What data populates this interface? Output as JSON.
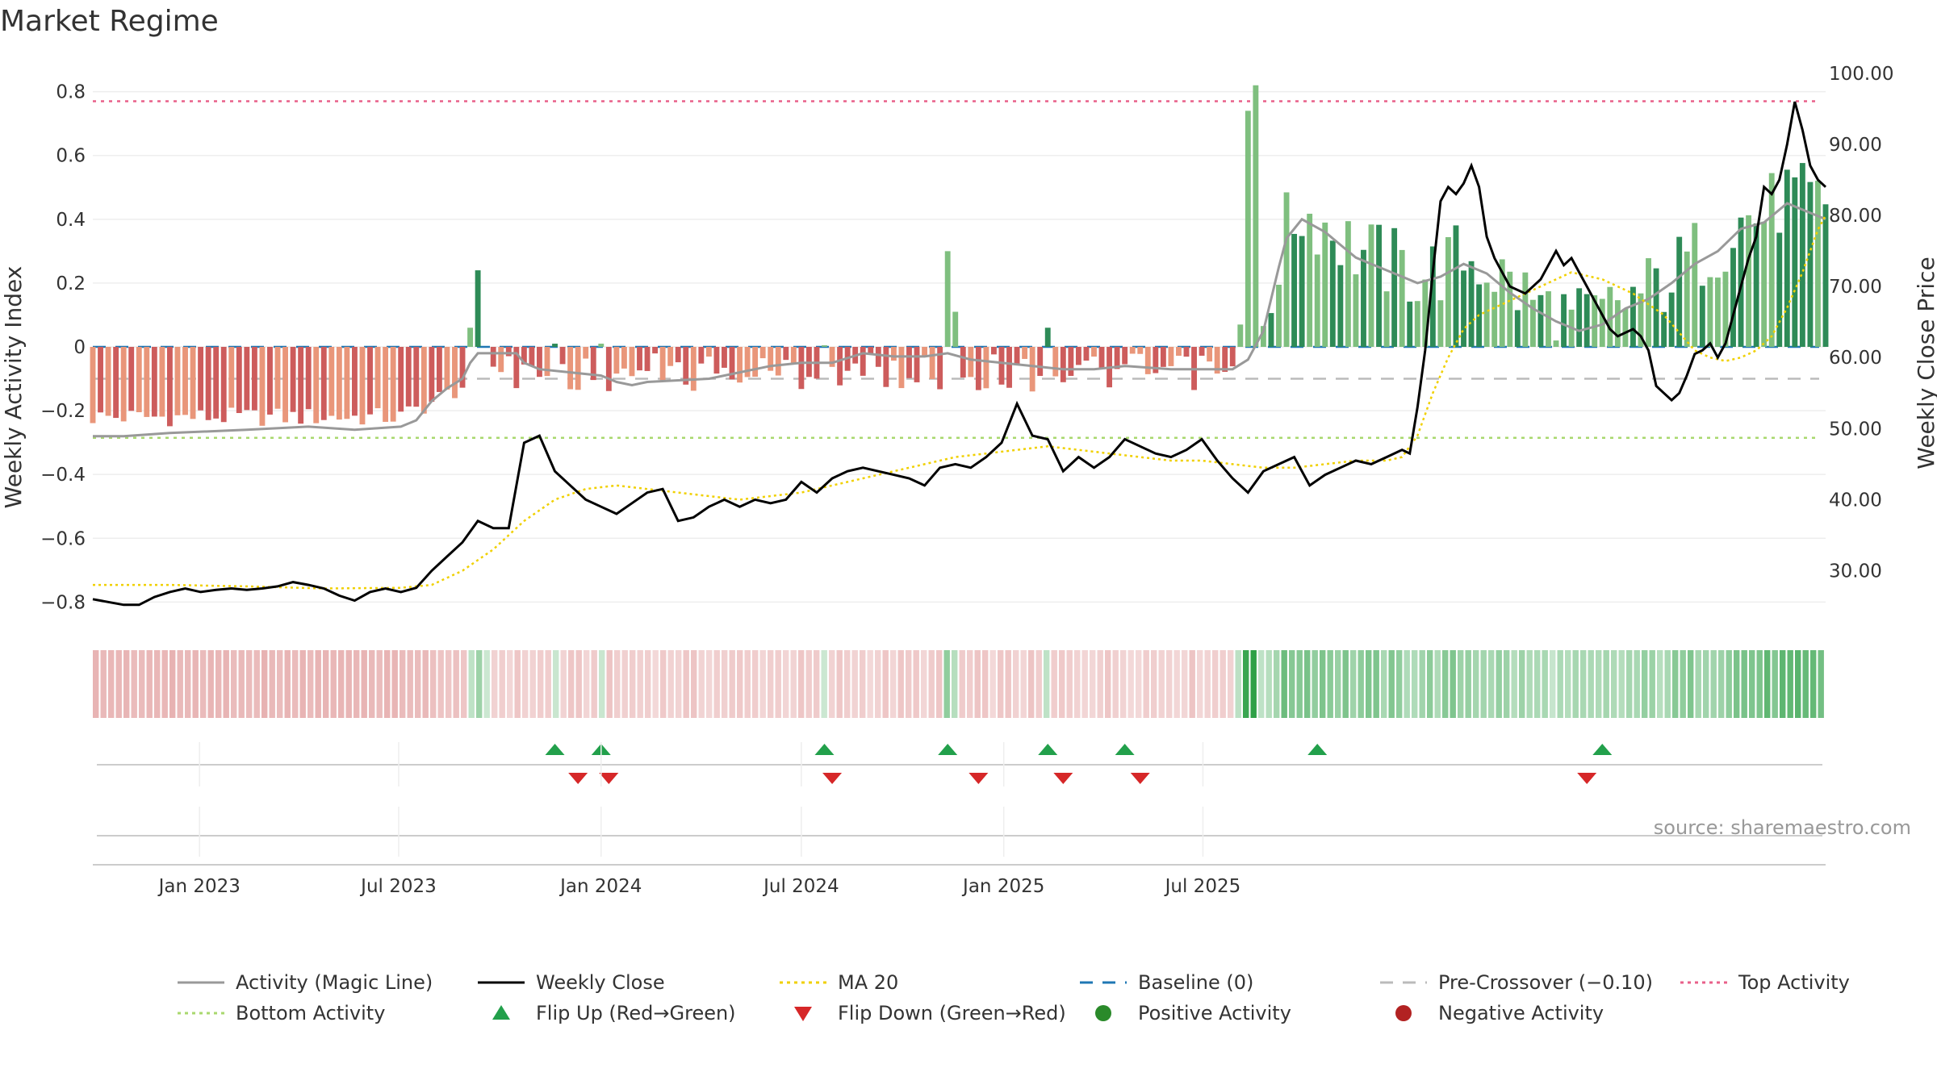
{
  "title": "Market Regime",
  "source": "source: sharemaestro.com",
  "colors": {
    "pos_dark": "#2e8b57",
    "pos_light": "#7fbf7f",
    "neg_dark": "#cd5c5c",
    "neg_light": "#e9967a",
    "close": "#000000",
    "magic": "#999999",
    "ma": "#f0d000",
    "baseline": "#1f77b4",
    "pre": "#bbbbbb",
    "top": "#e8608a",
    "bottom": "#a9d86e",
    "flip_up": "#22a04b",
    "flip_down": "#d62728"
  },
  "chart_data": {
    "type": "bar",
    "x_start": "2022-09-26",
    "x_step_days": 7,
    "x_ticks": [
      "Jan 2023",
      "Jul 2023",
      "Jan 2024",
      "Jul 2024",
      "Jan 2025",
      "Jul 2025"
    ],
    "x_tick_dates": [
      "2023-01-01",
      "2023-07-01",
      "2024-01-01",
      "2024-07-01",
      "2025-01-01",
      "2025-07-01"
    ],
    "y_left": {
      "label": "Weekly Activity Index",
      "range": [
        -0.88,
        0.88
      ],
      "ticks": [
        -0.8,
        -0.6,
        -0.4,
        -0.2,
        0,
        0.2,
        0.4,
        0.6,
        0.8
      ],
      "tick_labels": [
        "−0.8",
        "−0.6",
        "−0.4",
        "−0.2",
        "0",
        "0.2",
        "0.4",
        "0.6",
        "0.8"
      ]
    },
    "y_right": {
      "label": "Weekly Close Price",
      "range": [
        22,
        101
      ],
      "ticks": [
        30,
        40,
        50,
        60,
        70,
        80,
        90,
        100
      ],
      "tick_labels": [
        "30.00",
        "40.00",
        "50.00",
        "60.00",
        "70.00",
        "80.00",
        "90.00",
        "100.00"
      ]
    },
    "reference_lines": {
      "top_activity": 0.77,
      "bottom_activity": -0.285,
      "pre_crossover": -0.1,
      "baseline": 0
    },
    "series": [
      {
        "name": "Activity (Magic Line)",
        "style": "solid",
        "color": "#999999",
        "kind": "line"
      },
      {
        "name": "Weekly Close",
        "style": "solid",
        "color": "#000000",
        "kind": "line"
      },
      {
        "name": "MA 20",
        "style": "dotted",
        "color": "#f0d000",
        "kind": "line"
      },
      {
        "name": "Baseline (0)",
        "style": "dashed",
        "color": "#1f77b4",
        "kind": "line"
      },
      {
        "name": "Pre-Crossover (−0.10)",
        "style": "dashed",
        "color": "#bbbbbb",
        "kind": "line"
      },
      {
        "name": "Top Activity",
        "style": "dotted",
        "color": "#e8608a",
        "kind": "line"
      },
      {
        "name": "Bottom Activity",
        "style": "dotted",
        "color": "#a9d86e",
        "kind": "line"
      },
      {
        "name": "Flip Up (Red→Green)",
        "style": "marker",
        "color": "#22a04b",
        "kind": "triangle-up"
      },
      {
        "name": "Flip Down (Green→Red)",
        "style": "marker",
        "color": "#d62728",
        "kind": "triangle-down"
      },
      {
        "name": "Positive Activity",
        "style": "marker",
        "color": "#2a8a2a",
        "kind": "circle"
      },
      {
        "name": "Negative Activity",
        "style": "marker",
        "color": "#b22222",
        "kind": "circle"
      }
    ],
    "activity_points": [
      [
        0,
        -0.28
      ],
      [
        4,
        -0.28
      ],
      [
        10,
        -0.27
      ],
      [
        20,
        -0.26
      ],
      [
        28,
        -0.25
      ],
      [
        34,
        -0.26
      ],
      [
        40,
        -0.25
      ],
      [
        42,
        -0.23
      ],
      [
        44,
        -0.17
      ],
      [
        46,
        -0.13
      ],
      [
        48,
        -0.1
      ],
      [
        49,
        -0.05
      ],
      [
        50,
        -0.02
      ],
      [
        51,
        -0.02
      ],
      [
        55,
        -0.02
      ],
      [
        56,
        -0.05
      ],
      [
        58,
        -0.07
      ],
      [
        62,
        -0.08
      ],
      [
        66,
        -0.09
      ],
      [
        68,
        -0.11
      ],
      [
        70,
        -0.12
      ],
      [
        72,
        -0.11
      ],
      [
        80,
        -0.1
      ],
      [
        84,
        -0.08
      ],
      [
        88,
        -0.06
      ],
      [
        92,
        -0.05
      ],
      [
        96,
        -0.05
      ],
      [
        100,
        -0.02
      ],
      [
        104,
        -0.03
      ],
      [
        108,
        -0.03
      ],
      [
        111,
        -0.02
      ],
      [
        114,
        -0.04
      ],
      [
        118,
        -0.05
      ],
      [
        122,
        -0.06
      ],
      [
        126,
        -0.07
      ],
      [
        130,
        -0.07
      ],
      [
        134,
        -0.06
      ],
      [
        140,
        -0.07
      ],
      [
        144,
        -0.07
      ],
      [
        148,
        -0.07
      ],
      [
        150,
        -0.04
      ],
      [
        152,
        0.05
      ],
      [
        154,
        0.25
      ],
      [
        155,
        0.34
      ],
      [
        157,
        0.4
      ],
      [
        160,
        0.36
      ],
      [
        162,
        0.32
      ],
      [
        164,
        0.28
      ],
      [
        166,
        0.26
      ],
      [
        169,
        0.23
      ],
      [
        172,
        0.2
      ],
      [
        175,
        0.22
      ],
      [
        178,
        0.26
      ],
      [
        181,
        0.23
      ],
      [
        184,
        0.17
      ],
      [
        187,
        0.12
      ],
      [
        190,
        0.08
      ],
      [
        193,
        0.05
      ],
      [
        196,
        0.07
      ],
      [
        199,
        0.12
      ],
      [
        202,
        0.15
      ],
      [
        205,
        0.2
      ],
      [
        208,
        0.26
      ],
      [
        211,
        0.3
      ],
      [
        214,
        0.37
      ],
      [
        217,
        0.39
      ],
      [
        220,
        0.45
      ],
      [
        223,
        0.42
      ],
      [
        225,
        0.4
      ]
    ],
    "close_points": [
      [
        0,
        26.0
      ],
      [
        2,
        25.6
      ],
      [
        4,
        25.2
      ],
      [
        6,
        25.2
      ],
      [
        8,
        26.3
      ],
      [
        10,
        27.0
      ],
      [
        12,
        27.5
      ],
      [
        14,
        27.0
      ],
      [
        16,
        27.3
      ],
      [
        18,
        27.5
      ],
      [
        20,
        27.3
      ],
      [
        22,
        27.5
      ],
      [
        24,
        27.8
      ],
      [
        26,
        28.4
      ],
      [
        28,
        28.0
      ],
      [
        30,
        27.5
      ],
      [
        32,
        26.5
      ],
      [
        34,
        25.8
      ],
      [
        36,
        27.0
      ],
      [
        38,
        27.5
      ],
      [
        40,
        27.0
      ],
      [
        42,
        27.6
      ],
      [
        44,
        30.0
      ],
      [
        46,
        32.0
      ],
      [
        48,
        34.0
      ],
      [
        50,
        37.0
      ],
      [
        52,
        36.0
      ],
      [
        54,
        36.0
      ],
      [
        56,
        48.0
      ],
      [
        58,
        49.0
      ],
      [
        60,
        44.0
      ],
      [
        62,
        42.0
      ],
      [
        64,
        40.0
      ],
      [
        66,
        39.0
      ],
      [
        68,
        38.0
      ],
      [
        70,
        39.5
      ],
      [
        72,
        41.0
      ],
      [
        74,
        41.5
      ],
      [
        76,
        37.0
      ],
      [
        78,
        37.5
      ],
      [
        80,
        39.0
      ],
      [
        82,
        40.0
      ],
      [
        84,
        39.0
      ],
      [
        86,
        40.0
      ],
      [
        88,
        39.5
      ],
      [
        90,
        40.0
      ],
      [
        92,
        42.5
      ],
      [
        94,
        41.0
      ],
      [
        96,
        43.0
      ],
      [
        98,
        44.0
      ],
      [
        100,
        44.5
      ],
      [
        102,
        44.0
      ],
      [
        104,
        43.5
      ],
      [
        106,
        43.0
      ],
      [
        108,
        42.0
      ],
      [
        110,
        44.5
      ],
      [
        112,
        45.0
      ],
      [
        114,
        44.5
      ],
      [
        116,
        46.0
      ],
      [
        118,
        48.0
      ],
      [
        120,
        53.5
      ],
      [
        122,
        49.0
      ],
      [
        124,
        48.5
      ],
      [
        126,
        44.0
      ],
      [
        128,
        46.0
      ],
      [
        130,
        44.5
      ],
      [
        132,
        46.0
      ],
      [
        134,
        48.5
      ],
      [
        136,
        47.5
      ],
      [
        138,
        46.5
      ],
      [
        140,
        46.0
      ],
      [
        142,
        47.0
      ],
      [
        144,
        48.5
      ],
      [
        146,
        45.5
      ],
      [
        148,
        43.0
      ],
      [
        150,
        41.0
      ],
      [
        152,
        44.0
      ],
      [
        154,
        45.0
      ],
      [
        156,
        46.0
      ],
      [
        158,
        42.0
      ],
      [
        160,
        43.5
      ],
      [
        162,
        44.5
      ],
      [
        164,
        45.5
      ],
      [
        166,
        45.0
      ],
      [
        168,
        46.0
      ],
      [
        170,
        47.0
      ],
      [
        171,
        46.5
      ],
      [
        172,
        53.0
      ],
      [
        173,
        61.0
      ],
      [
        174,
        72.0
      ],
      [
        175,
        82.0
      ],
      [
        176,
        84.0
      ],
      [
        177,
        83.0
      ],
      [
        178,
        84.5
      ],
      [
        179,
        87.0
      ],
      [
        180,
        84.0
      ],
      [
        181,
        77.0
      ],
      [
        182,
        74.0
      ],
      [
        183,
        72.0
      ],
      [
        184,
        70.0
      ],
      [
        186,
        69.0
      ],
      [
        188,
        71.0
      ],
      [
        189,
        73.0
      ],
      [
        190,
        75.0
      ],
      [
        191,
        73.0
      ],
      [
        192,
        74.0
      ],
      [
        193,
        72.0
      ],
      [
        194,
        70.0
      ],
      [
        195,
        68.0
      ],
      [
        196,
        66.0
      ],
      [
        197,
        64.0
      ],
      [
        198,
        63.0
      ],
      [
        199,
        63.5
      ],
      [
        200,
        64.0
      ],
      [
        201,
        63.0
      ],
      [
        202,
        61.0
      ],
      [
        203,
        56.0
      ],
      [
        204,
        55.0
      ],
      [
        205,
        54.0
      ],
      [
        206,
        55.0
      ],
      [
        207,
        57.5
      ],
      [
        208,
        60.5
      ],
      [
        209,
        61.0
      ],
      [
        210,
        62.0
      ],
      [
        211,
        60.0
      ],
      [
        212,
        62.0
      ],
      [
        213,
        66.0
      ],
      [
        214,
        70.0
      ],
      [
        215,
        74.0
      ],
      [
        216,
        77.0
      ],
      [
        217,
        84.0
      ],
      [
        218,
        83.0
      ],
      [
        219,
        85.0
      ],
      [
        220,
        90.0
      ],
      [
        221,
        96.0
      ],
      [
        222,
        92.0
      ],
      [
        223,
        87.0
      ],
      [
        224,
        85.0
      ],
      [
        225,
        84.0
      ]
    ],
    "ma_points": [
      [
        0,
        28.0
      ],
      [
        10,
        28.0
      ],
      [
        20,
        27.8
      ],
      [
        30,
        27.5
      ],
      [
        40,
        27.6
      ],
      [
        44,
        28.0
      ],
      [
        48,
        30.0
      ],
      [
        52,
        33.0
      ],
      [
        56,
        37.0
      ],
      [
        60,
        40.0
      ],
      [
        64,
        41.5
      ],
      [
        68,
        42.0
      ],
      [
        72,
        41.5
      ],
      [
        76,
        41.0
      ],
      [
        80,
        40.5
      ],
      [
        84,
        40.0
      ],
      [
        88,
        40.5
      ],
      [
        92,
        41.0
      ],
      [
        96,
        42.0
      ],
      [
        100,
        43.0
      ],
      [
        104,
        44.0
      ],
      [
        108,
        45.0
      ],
      [
        112,
        46.0
      ],
      [
        116,
        46.5
      ],
      [
        120,
        47.0
      ],
      [
        124,
        47.5
      ],
      [
        128,
        47.0
      ],
      [
        132,
        46.5
      ],
      [
        136,
        46.0
      ],
      [
        140,
        45.5
      ],
      [
        144,
        45.5
      ],
      [
        148,
        45.0
      ],
      [
        152,
        44.5
      ],
      [
        156,
        44.5
      ],
      [
        160,
        45.0
      ],
      [
        164,
        45.5
      ],
      [
        168,
        45.5
      ],
      [
        170,
        46.0
      ],
      [
        172,
        49.0
      ],
      [
        174,
        55.0
      ],
      [
        176,
        60.0
      ],
      [
        178,
        64.0
      ],
      [
        180,
        66.0
      ],
      [
        184,
        68.0
      ],
      [
        188,
        70.0
      ],
      [
        192,
        72.0
      ],
      [
        196,
        71.0
      ],
      [
        200,
        69.0
      ],
      [
        204,
        66.0
      ],
      [
        208,
        61.0
      ],
      [
        210,
        60.0
      ],
      [
        212,
        59.5
      ],
      [
        214,
        60.0
      ],
      [
        216,
        61.0
      ],
      [
        218,
        63.0
      ],
      [
        220,
        67.0
      ],
      [
        222,
        72.0
      ],
      [
        224,
        78.0
      ],
      [
        225,
        80.0
      ]
    ],
    "activity_bars_segments": [
      [
        0,
        48,
        -0.25,
        -0.12,
        "neg"
      ],
      [
        49,
        51,
        0.05,
        0.24,
        "posflip"
      ],
      [
        52,
        148,
        -0.14,
        0.02,
        "mixedneg"
      ],
      [
        149,
        151,
        0.07,
        0.0,
        "smallpos"
      ],
      [
        152,
        225,
        0.15,
        0.82,
        "pos"
      ]
    ],
    "flip_up_weeks": [
      60,
      66,
      95,
      111,
      124,
      134,
      159,
      196
    ],
    "flip_down_weeks": [
      63,
      67,
      96,
      115,
      126,
      136,
      194
    ]
  }
}
